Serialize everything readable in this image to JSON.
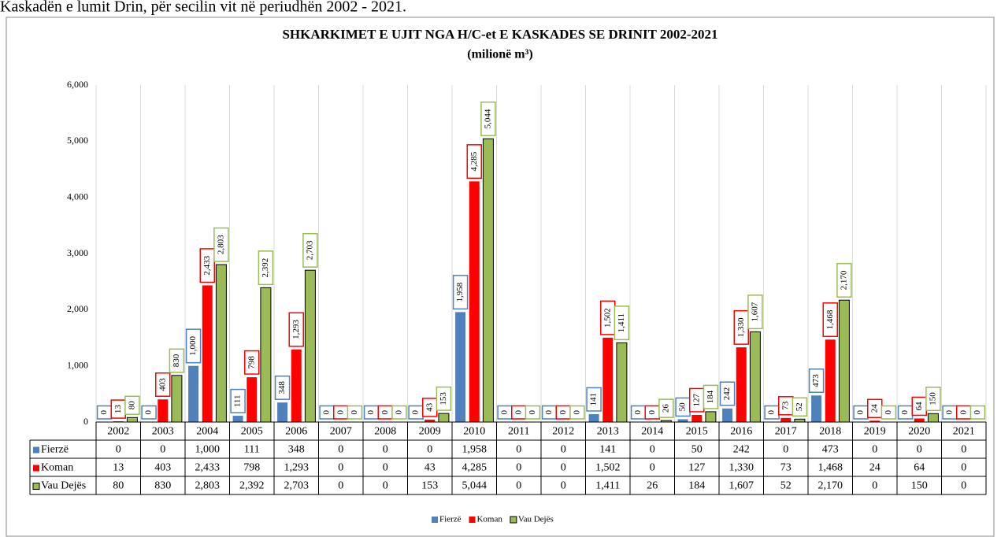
{
  "caption": "Kaskadën e lumit Drin, për secilin vit në periudhën 2002 - 2021.",
  "chart_data": {
    "type": "bar",
    "title": "SHKARKIMET E UJIT NGA H/C-et E KASKADES SE DRINIT 2002-2021",
    "subtitle": "(milionë m³)",
    "categories": [
      "2002",
      "2003",
      "2004",
      "2005",
      "2006",
      "2007",
      "2008",
      "2009",
      "2010",
      "2011",
      "2012",
      "2013",
      "2014",
      "2015",
      "2016",
      "2017",
      "2018",
      "2019",
      "2020",
      "2021"
    ],
    "series": [
      {
        "name": "Fierzë",
        "color": "#4f81bd",
        "values": [
          0,
          0,
          1000,
          111,
          348,
          0,
          0,
          0,
          1958,
          0,
          0,
          141,
          0,
          50,
          242,
          0,
          473,
          0,
          0,
          0
        ],
        "value_labels": [
          "0",
          "0",
          "1,000",
          "111",
          "348",
          "0",
          "0",
          "0",
          "1,958",
          "0",
          "0",
          "141",
          "0",
          "50",
          "242",
          "0",
          "473",
          "0",
          "0",
          "0"
        ]
      },
      {
        "name": "Koman",
        "color": "#ff0000",
        "values": [
          13,
          403,
          2433,
          798,
          1293,
          0,
          0,
          43,
          4285,
          0,
          0,
          1502,
          0,
          127,
          1330,
          73,
          1468,
          24,
          64,
          0
        ],
        "value_labels": [
          "13",
          "403",
          "2,433",
          "798",
          "1,293",
          "0",
          "0",
          "43",
          "4,285",
          "0",
          "0",
          "1,502",
          "0",
          "127",
          "1,330",
          "73",
          "1,468",
          "24",
          "64",
          "0"
        ]
      },
      {
        "name": "Vau Dejës",
        "color": "#9bbb59",
        "values": [
          80,
          830,
          2803,
          2392,
          2703,
          0,
          0,
          153,
          5044,
          0,
          0,
          1411,
          26,
          184,
          1607,
          52,
          2170,
          0,
          150,
          0
        ],
        "value_labels": [
          "80",
          "830",
          "2,803",
          "2,392",
          "2,703",
          "0",
          "0",
          "153",
          "5,044",
          "0",
          "0",
          "1,411",
          "26",
          "184",
          "1,607",
          "52",
          "2,170",
          "0",
          "150",
          "0"
        ]
      }
    ],
    "ylim": [
      0,
      6000
    ],
    "yticks": [
      0,
      {
        "value": 1000,
        "label": "1,000"
      },
      {
        "value": 2000,
        "label": "2,000"
      },
      {
        "value": 3000,
        "label": "3,000"
      },
      {
        "value": 4000,
        "label": "4,000"
      },
      {
        "value": 5000,
        "label": "5,000"
      },
      {
        "value": 6000,
        "label": "6,000"
      }
    ],
    "grid": "vertical",
    "legend": "bottom"
  }
}
